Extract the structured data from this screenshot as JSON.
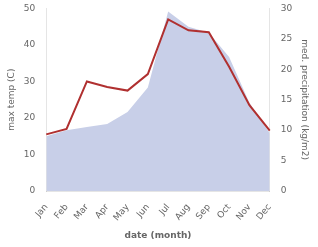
{
  "chart_data": {
    "type": "line",
    "categories": [
      "Jan",
      "Feb",
      "Mar",
      "Apr",
      "May",
      "Jun",
      "Jul",
      "Aug",
      "Sep",
      "Oct",
      "Nov",
      "Dec"
    ],
    "xlabel": "date (month)",
    "ylabel": "max temp (C)",
    "y2label": "med. precipitation (kg/m2)",
    "series": [
      {
        "type": "area",
        "axis": "y2",
        "color": "#c8cfe8",
        "values": [
          9.0,
          10.0,
          10.5,
          11.0,
          13.0,
          17.0,
          29.5,
          27.0,
          26.0,
          22.0,
          14.5,
          9.5
        ]
      },
      {
        "type": "line",
        "color": "#b03030",
        "values": [
          15.5,
          17.0,
          30.0,
          28.5,
          27.5,
          32.0,
          47.0,
          44.0,
          43.5,
          34.0,
          23.5,
          16.5
        ]
      }
    ],
    "ylim": [
      0,
      50
    ],
    "yticks": [
      0,
      10,
      20,
      30,
      40,
      50
    ],
    "y2lim": [
      0,
      30
    ],
    "y2ticks": [
      0,
      5,
      10,
      15,
      20,
      25,
      30
    ],
    "grid": false
  }
}
